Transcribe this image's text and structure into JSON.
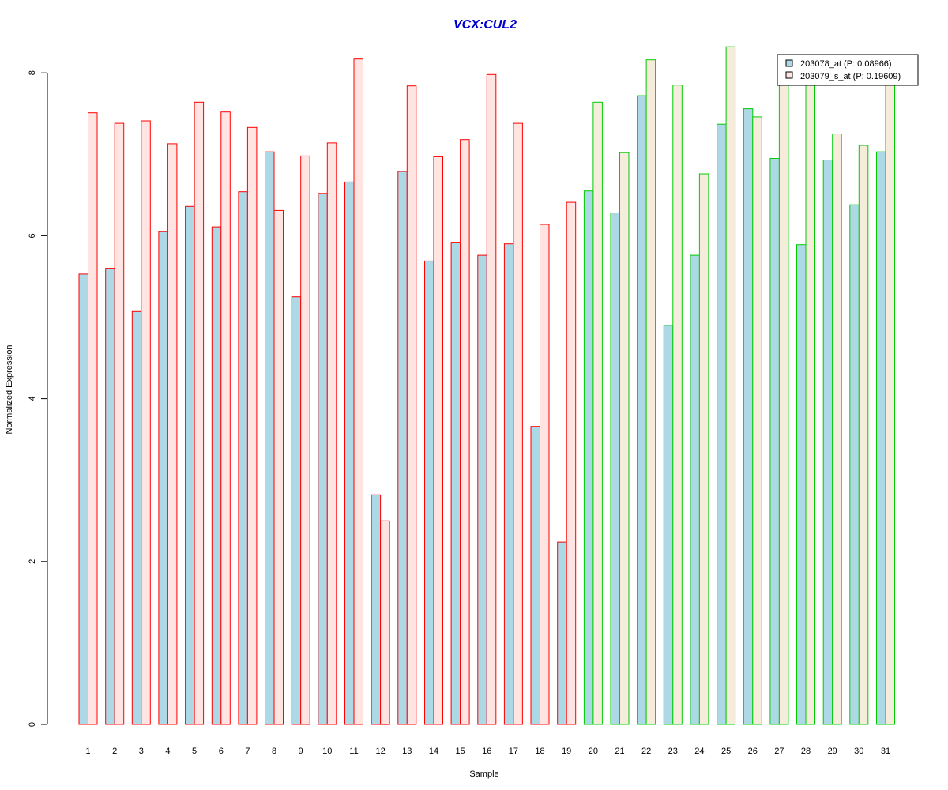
{
  "chart_data": {
    "type": "bar",
    "title": "VCX:CUL2",
    "xlabel": "Sample",
    "ylabel": "Normalized Expression",
    "ylim": [
      0,
      8.4
    ],
    "yticks": [
      "0",
      "2",
      "4",
      "6",
      "8"
    ],
    "grid": false,
    "legend_position": "top-right",
    "categories": [
      "1",
      "2",
      "3",
      "4",
      "5",
      "6",
      "7",
      "8",
      "9",
      "10",
      "11",
      "12",
      "13",
      "14",
      "15",
      "16",
      "17",
      "18",
      "19",
      "20",
      "21",
      "22",
      "23",
      "24",
      "25",
      "26",
      "27",
      "28",
      "29",
      "30",
      "31"
    ],
    "group_a_samples": 19,
    "colors": {
      "series1_fill": "#add8e6",
      "series2_fill_group_a": "#ffe4e1",
      "series2_fill_group_b": "#f5ecdc",
      "border_group_a": "#ff0000",
      "border_group_b": "#00cc00",
      "title": "#0000cc"
    },
    "series": [
      {
        "name": "203078_at (P: 0.08966)",
        "values": [
          5.53,
          5.6,
          5.07,
          6.05,
          6.36,
          6.11,
          6.54,
          7.03,
          5.25,
          6.52,
          6.66,
          2.82,
          6.79,
          5.69,
          5.92,
          5.76,
          5.9,
          3.66,
          2.24,
          6.55,
          6.28,
          7.72,
          4.9,
          5.76,
          7.37,
          7.56,
          6.95,
          5.89,
          6.93,
          6.38,
          7.03
        ]
      },
      {
        "name": "203079_s_at (P: 0.19609)",
        "values": [
          7.51,
          7.38,
          7.41,
          7.13,
          7.64,
          7.52,
          7.33,
          6.31,
          6.98,
          7.14,
          8.17,
          2.5,
          7.84,
          6.97,
          7.18,
          7.98,
          7.38,
          6.14,
          6.41,
          7.64,
          7.02,
          8.16,
          7.85,
          6.76,
          8.32,
          7.46,
          7.9,
          7.87,
          7.25,
          7.11,
          7.87
        ]
      }
    ]
  }
}
